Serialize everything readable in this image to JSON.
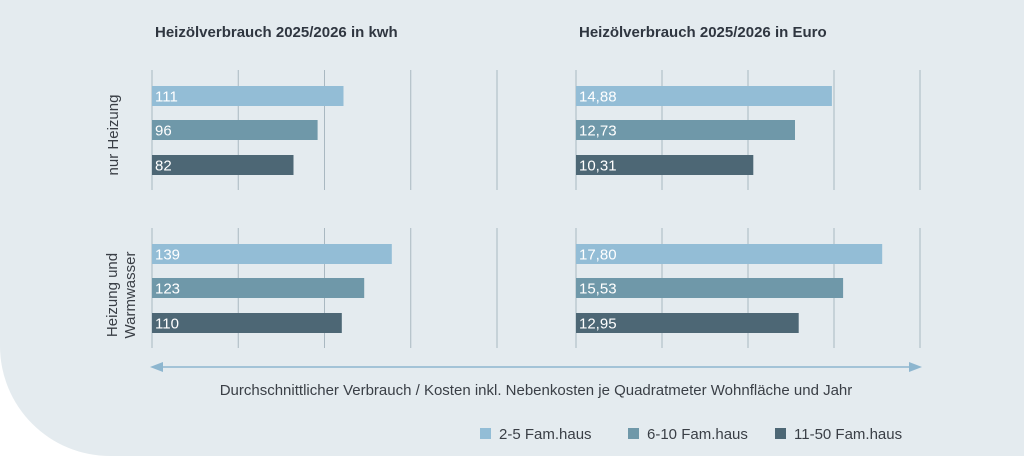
{
  "colors": {
    "series_1": "#93bdd6",
    "series_2": "#6f98a9",
    "series_3": "#4d6775",
    "arrow": "#8db6cf"
  },
  "caption": "Durchschnittlicher Verbrauch / Kosten inkl. Nebenkosten je Quadratmeter Wohnfläche und Jahr",
  "row_labels": [
    [
      "nur Heizung"
    ],
    [
      "Heizung und",
      "Warmwasser"
    ]
  ],
  "legend": [
    "2-5 Fam.haus",
    "6-10 Fam.haus",
    "11-50 Fam.haus"
  ],
  "chart_data": [
    {
      "type": "bar",
      "orientation": "horizontal",
      "title": "Heizölverbrauch 2025/2026 in kwh",
      "groups": [
        {
          "name": "nur Heizung",
          "values": [
            111,
            96,
            82
          ],
          "labels": [
            "111",
            "96",
            "82"
          ]
        },
        {
          "name": "Heizung und Warmwasser",
          "values": [
            139,
            123,
            110
          ],
          "labels": [
            "139",
            "123",
            "110"
          ]
        }
      ],
      "series": [
        "2-5 Fam.haus",
        "6-10 Fam.haus",
        "11-50 Fam.haus"
      ],
      "xlim": [
        0,
        200
      ],
      "grid": true
    },
    {
      "type": "bar",
      "orientation": "horizontal",
      "title": "Heizölverbrauch 2025/2026 in Euro",
      "groups": [
        {
          "name": "nur Heizung",
          "values": [
            14.88,
            12.73,
            10.31
          ],
          "labels": [
            "14,88",
            "12,73",
            "10,31"
          ]
        },
        {
          "name": "Heizung und Warmwasser",
          "values": [
            17.8,
            15.53,
            12.95
          ],
          "labels": [
            "17,80",
            "15,53",
            "12,95"
          ]
        }
      ],
      "series": [
        "2-5 Fam.haus",
        "6-10 Fam.haus",
        "11-50 Fam.haus"
      ],
      "xlim": [
        0,
        20
      ],
      "grid": true
    }
  ]
}
